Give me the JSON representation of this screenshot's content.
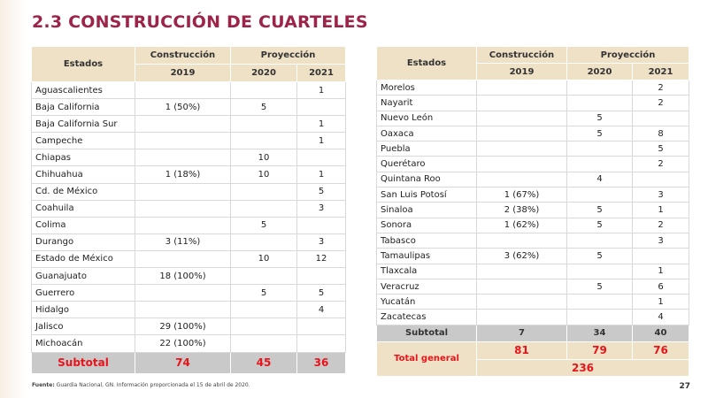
{
  "title": "2.3 CONSTRUCCIÓN DE CUARTELES",
  "tables": [
    {
      "header": {
        "estados": "Estados",
        "construccion": "Construcción",
        "proyeccion": "Proyección",
        "years": [
          "2019",
          "2020",
          "2021"
        ]
      },
      "rows": [
        [
          "Aguascalientes",
          null,
          null,
          "1"
        ],
        [
          "Baja California",
          "1 (50%)",
          "5",
          null
        ],
        [
          "Baja California Sur",
          null,
          null,
          "1"
        ],
        [
          "Campeche",
          null,
          null,
          "1"
        ],
        [
          "Chiapas",
          null,
          "10",
          null
        ],
        [
          "Chihuahua",
          "1 (18%)",
          "10",
          "1"
        ],
        [
          "Cd. de México",
          null,
          null,
          "5"
        ],
        [
          "Coahuila",
          null,
          null,
          "3"
        ],
        [
          "Colima",
          null,
          "5",
          null
        ],
        [
          "Durango",
          "3 (11%)",
          null,
          "3"
        ],
        [
          "Estado de México",
          null,
          "10",
          "12"
        ],
        [
          "Guanajuato",
          "18 (100%)",
          null,
          null
        ],
        [
          "Guerrero",
          null,
          "5",
          "5"
        ],
        [
          "Hidalgo",
          null,
          null,
          "4"
        ],
        [
          "Jalisco",
          "29 (100%)",
          null,
          null
        ],
        [
          "Michoacán",
          "22 (100%)",
          null,
          null
        ]
      ],
      "subtotal": {
        "label": "Subtotal",
        "values": [
          "74",
          "45",
          "36"
        ]
      }
    },
    {
      "header": {
        "estados": "Estados",
        "construccion": "Construcción",
        "proyeccion": "Proyección",
        "years": [
          "2019",
          "2020",
          "2021"
        ]
      },
      "rows": [
        [
          "Morelos",
          null,
          null,
          "2"
        ],
        [
          "Nayarit",
          null,
          null,
          "2"
        ],
        [
          "Nuevo León",
          null,
          "5",
          null
        ],
        [
          "Oaxaca",
          null,
          "5",
          "8"
        ],
        [
          "Puebla",
          null,
          null,
          "5"
        ],
        [
          "Querétaro",
          null,
          null,
          "2"
        ],
        [
          "Quintana Roo",
          null,
          "4",
          null
        ],
        [
          "San Luis Potosí",
          "1 (67%)",
          null,
          "3"
        ],
        [
          "Sinaloa",
          "2 (38%)",
          "5",
          "1"
        ],
        [
          "Sonora",
          "1 (62%)",
          "5",
          "2"
        ],
        [
          "Tabasco",
          null,
          null,
          "3"
        ],
        [
          "Tamaulipas",
          "3 (62%)",
          "5",
          null
        ],
        [
          "Tlaxcala",
          null,
          null,
          "1"
        ],
        [
          "Veracruz",
          null,
          "5",
          "6"
        ],
        [
          "Yucatán",
          null,
          null,
          "1"
        ],
        [
          "Zacatecas",
          null,
          null,
          "4"
        ]
      ],
      "subtotal": {
        "label": "Subtotal",
        "values": [
          "7",
          "34",
          "40"
        ]
      },
      "total": {
        "label": "Total general",
        "values": [
          "81",
          "79",
          "76"
        ],
        "sum": "236"
      }
    }
  ],
  "footnote": {
    "source_label": "Fuente:",
    "text": "Guardia Nacional, GN. Información proporcionada el 15 de abril de 2020."
  },
  "page_number": "27"
}
